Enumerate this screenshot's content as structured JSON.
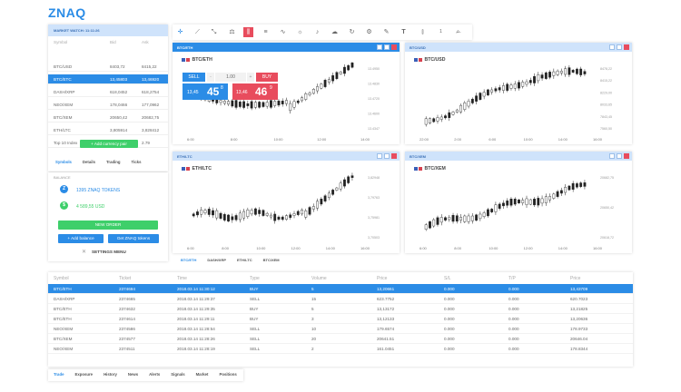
{
  "app": {
    "logo": "ZNAQ"
  },
  "market_watch": {
    "title": "MARKET WATCH: 11:11:26",
    "columns": [
      "Symbol",
      "Bid",
      "Ask"
    ],
    "rows": [
      {
        "symbol": "BTC/USD",
        "bid": "8403,72",
        "ask": "8415,22"
      },
      {
        "symbol": "BTC/ETC",
        "bid": "13,45803",
        "ask": "13,46920"
      },
      {
        "symbol": "DASH/XRP",
        "bid": "618,0452",
        "ask": "618,2754"
      },
      {
        "symbol": "NEO/XEM",
        "bid": "178,0466",
        "ask": "177,0962"
      },
      {
        "symbol": "BTC/XEM",
        "bid": "20650,42",
        "ask": "20682,75"
      },
      {
        "symbol": "ETH/LTC",
        "bid": "3,805914",
        "ask": "3,828412"
      },
      {
        "symbol": "Top 10 Index",
        "bid": "2.78",
        "ask": "2.79"
      }
    ],
    "add_pair_label": "+ Add currency pair",
    "tabs": [
      "Symbols",
      "Details",
      "Trading",
      "Ticks"
    ]
  },
  "balance": {
    "title": "BALANCE",
    "tokens": "1395 ZNAQ TOKENS",
    "usd": "4 589,55 USD",
    "new_order": "NEW ORDER",
    "add_balance": "+ Add balance",
    "get_tokens": "Get ZNAQ tokens",
    "settings": "SETTINGS MENU"
  },
  "toolbar": {
    "interval": "1",
    "more": "..."
  },
  "charts": [
    {
      "tab": "BTC/ETH",
      "pair": "BTC/ETH",
      "x": [
        "6:00",
        "8:00",
        "10:00",
        "12:00",
        "14:00"
      ],
      "y": [
        "13.4950",
        "13.4830",
        "13.4720",
        "13.4600",
        "13.4347"
      ]
    },
    {
      "tab": "BTC/USD",
      "pair": "BTC/USD",
      "x": [
        "22:00",
        "2:00",
        "6:00",
        "10:00",
        "14:00",
        "16:00"
      ],
      "y": [
        "8478,22",
        "8415,22",
        "8229,00",
        "8033,65",
        "7843,45",
        "7560,50"
      ]
    },
    {
      "tab": "ETH/LTC",
      "pair": "ETH/LTC",
      "x": [
        "6:00",
        "8:00",
        "10:00",
        "12:00",
        "14:00",
        "16:00"
      ],
      "y": [
        "3,82948",
        "3,79763",
        "3,75981",
        "3,70503"
      ]
    },
    {
      "tab": "BTC/XEM",
      "pair": "BTC/XEM",
      "x": [
        "6:00",
        "8:00",
        "10:00",
        "12:00",
        "14:00",
        "16:00"
      ],
      "y": [
        "20682,75",
        "20650,42",
        "20618,72"
      ]
    }
  ],
  "trade": {
    "sell": "SELL",
    "buy": "BUY",
    "qty": "1.00",
    "minus": "-",
    "plus": "+",
    "sell_small": "13,45",
    "sell_big": "45",
    "sell_sup": "8",
    "buy_small": "13,46",
    "buy_big": "46",
    "buy_sup": "9"
  },
  "chart_tabs": [
    "BTC/ETH",
    "DASH/XRP",
    "ETH/LTC",
    "BTC/XEM"
  ],
  "orders": {
    "columns": [
      "Symbol",
      "Ticket",
      "Time",
      "Type",
      "Volume",
      "Price",
      "S/L",
      "T/P",
      "Price"
    ],
    "rows": [
      [
        "BTC/ETH",
        "2374694",
        "2018.03.14 11:30:12",
        "BUY",
        "5",
        "13,20661",
        "0.000",
        "0.000",
        "13,43709"
      ],
      [
        "DASH/XRP",
        "2374665",
        "2018.03.14 11:29:37",
        "SELL",
        "15",
        "623.7752",
        "0.000",
        "0.000",
        "620.7023"
      ],
      [
        "BTC/ETH",
        "2374632",
        "2018.03.14 11:29:35",
        "BUY",
        "5",
        "13,13172",
        "0.000",
        "0.000",
        "13,21825"
      ],
      [
        "BTC/ETH",
        "2374614",
        "2018.03.14 11:29:11",
        "BUY",
        "3",
        "13,12133",
        "0.000",
        "0.000",
        "13,20636"
      ],
      [
        "NEO/XEM",
        "2374586",
        "2018.03.14 11:28:54",
        "SELL",
        "10",
        "179.6574",
        "0.000",
        "0.000",
        "178.9733"
      ],
      [
        "BTC/XEM",
        "2374577",
        "2018.03.14 11:28:26",
        "SELL",
        "20",
        "20641.51",
        "0.000",
        "0.000",
        "20646.04"
      ],
      [
        "NEO/XEM",
        "2374511",
        "2018.03.14 11:28:19",
        "SELL",
        "2",
        "161.0451",
        "0.000",
        "0.000",
        "178.8344"
      ]
    ],
    "tabs": [
      "Trade",
      "Exposure",
      "History",
      "News",
      "Alerts",
      "Signals",
      "Market",
      "Positions"
    ]
  }
}
